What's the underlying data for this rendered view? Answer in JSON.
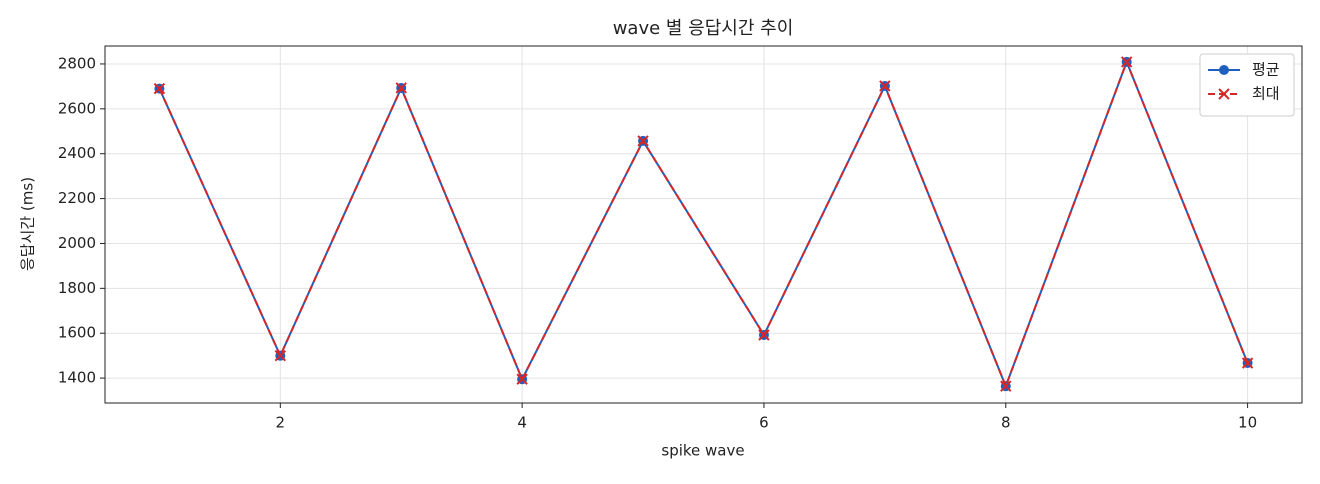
{
  "chart_data": {
    "type": "line",
    "title": "wave 별 응답시간 추이",
    "x_label": "spike wave",
    "y_label": "응답시간 (ms)",
    "x": [
      1,
      2,
      3,
      4,
      5,
      6,
      7,
      8,
      9,
      10
    ],
    "series": [
      {
        "name": "평균",
        "color": "#1f5fbf",
        "marker": "circle",
        "dash": "solid",
        "values": [
          2690,
          1500,
          2693,
          1395,
          2457,
          1592,
          2702,
          1364,
          2809,
          1467
        ]
      },
      {
        "name": "최대",
        "color": "#d62728",
        "marker": "x",
        "dash": "dashed",
        "values": [
          2690,
          1500,
          2693,
          1395,
          2457,
          1592,
          2702,
          1364,
          2809,
          1467
        ]
      }
    ],
    "xlim": [
      0.55,
      10.45
    ],
    "xticks": [
      2,
      4,
      6,
      8,
      10
    ],
    "ylim": [
      1289,
      2880
    ],
    "yticks": [
      1400,
      1600,
      1800,
      2000,
      2200,
      2400,
      2600,
      2800
    ],
    "grid": true,
    "legend": "upper right"
  }
}
